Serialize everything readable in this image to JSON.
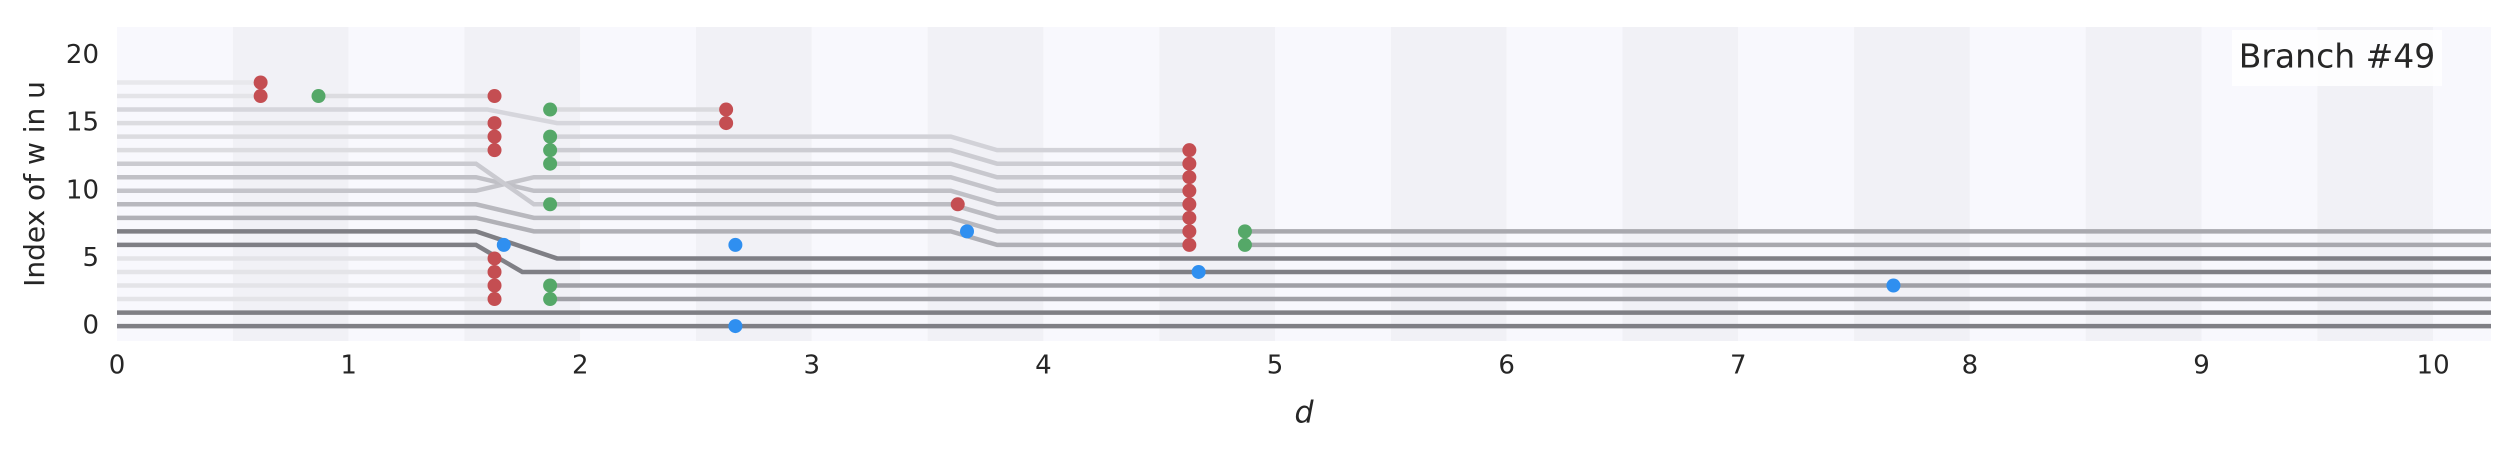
{
  "chart_data": {
    "type": "branch",
    "annotation": "Branch #49",
    "xlabel": "d",
    "ylabel": "Index of w in u",
    "xlim": [
      0,
      10.25
    ],
    "ylim": [
      -1.1,
      22.1
    ],
    "xticks": [
      0,
      1,
      2,
      3,
      4,
      5,
      6,
      7,
      8,
      9,
      10
    ],
    "yticks": [
      0,
      5,
      10,
      15,
      20
    ],
    "band_colors": [
      "#f8f8fd",
      "#f1f1f6"
    ],
    "lines": [
      {
        "color": "#7f7f85",
        "x": [
          0,
          10.25
        ],
        "y": [
          0,
          0
        ]
      },
      {
        "color": "#7f7f85",
        "x": [
          0,
          10.25
        ],
        "y": [
          1,
          1
        ]
      },
      {
        "color": "#e4e4e8",
        "x": [
          0,
          1.63
        ],
        "y": [
          2,
          2
        ]
      },
      {
        "color": "#e4e4e8",
        "x": [
          0,
          1.63
        ],
        "y": [
          3,
          3
        ]
      },
      {
        "color": "#e4e4e8",
        "x": [
          0,
          1.63
        ],
        "y": [
          4,
          4
        ]
      },
      {
        "color": "#e4e4e8",
        "x": [
          0,
          1.63
        ],
        "y": [
          5,
          5
        ]
      },
      {
        "color": "#7f7f85",
        "x": [
          0,
          1.55,
          1.75,
          10.25
        ],
        "y": [
          6,
          6,
          4,
          4
        ]
      },
      {
        "color": "#7f7f85",
        "x": [
          0,
          1.55,
          1.9,
          10.25
        ],
        "y": [
          7,
          7,
          5,
          5
        ]
      },
      {
        "color": "#a0a0a6",
        "x": [
          1.87,
          10.25
        ],
        "y": [
          2,
          2
        ]
      },
      {
        "color": "#a0a0a6",
        "x": [
          1.87,
          10.25
        ],
        "y": [
          3,
          3
        ]
      },
      {
        "color": "#a8a8ae",
        "x": [
          4.87,
          10.25
        ],
        "y": [
          6,
          6
        ]
      },
      {
        "color": "#a8a8ae",
        "x": [
          4.87,
          10.25
        ],
        "y": [
          7,
          7
        ]
      },
      {
        "color": "#b0b0b6",
        "x": [
          0,
          1.55,
          1.8,
          3.6,
          3.8,
          4.63
        ],
        "y": [
          8,
          8,
          7,
          7,
          6,
          6
        ]
      },
      {
        "color": "#b8b8be",
        "x": [
          0,
          1.55,
          1.8,
          3.6,
          3.8,
          4.63
        ],
        "y": [
          9,
          9,
          8,
          8,
          7,
          7
        ]
      },
      {
        "color": "#bcbcc2",
        "x": [
          1.87,
          3.6,
          3.8,
          4.63
        ],
        "y": [
          9,
          9,
          8,
          8
        ]
      },
      {
        "color": "#c4c4ca",
        "x": [
          0,
          1.55,
          1.8,
          3.6,
          3.8,
          4.63
        ],
        "y": [
          10,
          10,
          11,
          11,
          10,
          10
        ]
      },
      {
        "color": "#c0c0c6",
        "x": [
          0,
          1.55,
          1.8,
          3.6,
          3.8,
          4.63
        ],
        "y": [
          11,
          11,
          10,
          10,
          9,
          9
        ]
      },
      {
        "color": "#cacad0",
        "x": [
          0,
          1.55,
          1.8,
          1.87
        ],
        "y": [
          12,
          12,
          9,
          9
        ]
      },
      {
        "color": "#c8c8ce",
        "x": [
          1.87,
          3.6,
          3.8,
          4.63
        ],
        "y": [
          12,
          12,
          11,
          11
        ]
      },
      {
        "color": "#ccccd2",
        "x": [
          1.87,
          3.6,
          3.8,
          4.63
        ],
        "y": [
          13,
          13,
          12,
          12
        ]
      },
      {
        "color": "#d2d2d8",
        "x": [
          1.87,
          3.6,
          3.8,
          4.63
        ],
        "y": [
          14,
          14,
          13,
          13
        ]
      },
      {
        "color": "#dcdce0",
        "x": [
          0,
          1.63
        ],
        "y": [
          13,
          13
        ]
      },
      {
        "color": "#dcdce0",
        "x": [
          0,
          1.63
        ],
        "y": [
          14,
          14
        ]
      },
      {
        "color": "#dcdce0",
        "x": [
          0,
          1.63
        ],
        "y": [
          15,
          15
        ]
      },
      {
        "color": "#d6d6dc",
        "x": [
          0,
          1.6,
          1.9,
          2.63
        ],
        "y": [
          16,
          16,
          15,
          15
        ]
      },
      {
        "color": "#dadade",
        "x": [
          1.87,
          2.63
        ],
        "y": [
          16,
          16
        ]
      },
      {
        "color": "#e4e4e8",
        "x": [
          0,
          0.62
        ],
        "y": [
          17,
          17
        ]
      },
      {
        "color": "#e8e8ec",
        "x": [
          0,
          0.62
        ],
        "y": [
          18,
          18
        ]
      },
      {
        "color": "#dcdce0",
        "x": [
          0.87,
          1.63
        ],
        "y": [
          17,
          17
        ]
      }
    ],
    "points": [
      {
        "color": "#c44e52",
        "x": [
          0.62,
          0.62,
          1.63,
          1.63,
          1.63,
          1.63,
          1.63,
          1.63,
          1.63,
          1.63,
          2.63,
          2.63,
          3.63,
          4.63,
          4.63,
          4.63,
          4.63,
          4.63,
          4.63,
          4.63,
          4.63
        ],
        "y": [
          18,
          17,
          17,
          15,
          14,
          13,
          5,
          4,
          3,
          2,
          16,
          15,
          9,
          13,
          12,
          11,
          10,
          9,
          8,
          7,
          6
        ]
      },
      {
        "color": "#55a868",
        "x": [
          0.87,
          1.87,
          1.87,
          1.87,
          1.87,
          1.87,
          1.87,
          1.87,
          4.87,
          4.87
        ],
        "y": [
          17,
          16,
          14,
          13,
          12,
          9,
          3,
          2,
          7,
          6
        ]
      },
      {
        "color": "#2f8ff0",
        "x": [
          1.67,
          2.67,
          2.67,
          3.67,
          4.67,
          7.67
        ],
        "y": [
          6,
          6,
          0,
          7,
          4,
          3
        ]
      }
    ]
  }
}
